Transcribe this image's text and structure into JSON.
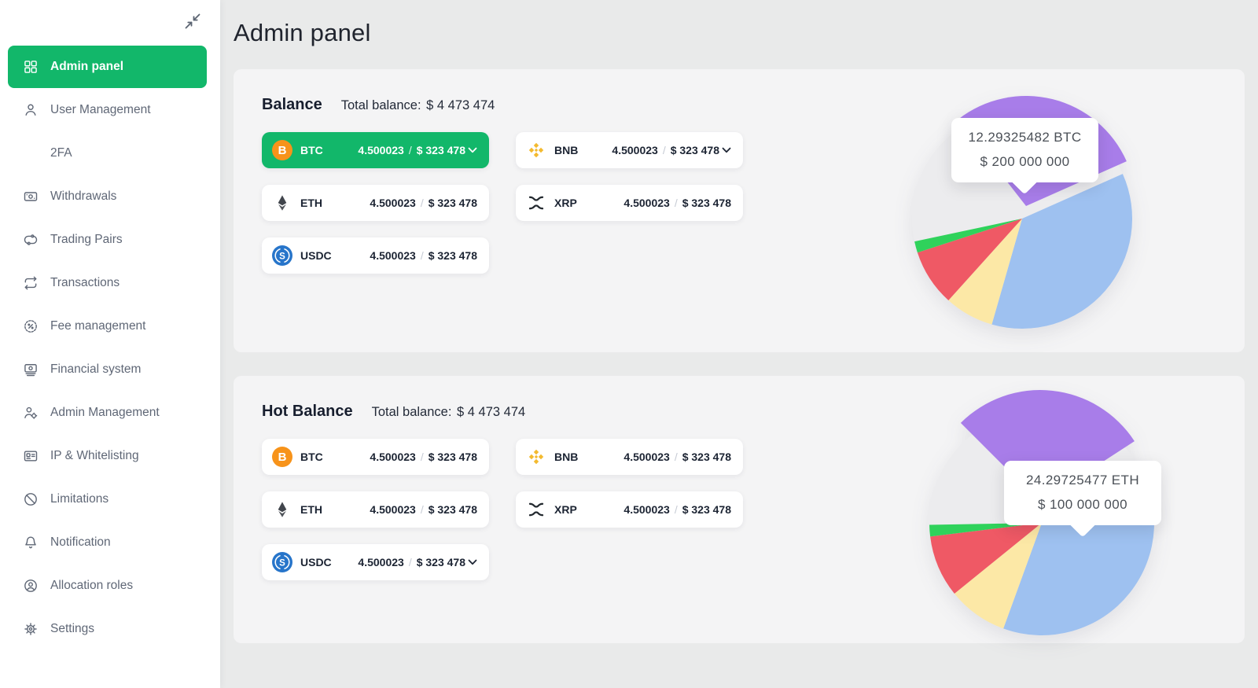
{
  "header": {
    "title": "Admin panel"
  },
  "sidebar": {
    "collapse_icon": "collapse-arrows-icon",
    "items": [
      {
        "label": "Admin panel",
        "icon": "grid-icon",
        "active": true
      },
      {
        "label": "User Management",
        "icon": "user-icon",
        "active": false
      },
      {
        "label": "2FA",
        "icon": null,
        "active": false
      },
      {
        "label": "Withdrawals",
        "icon": "banknote-icon",
        "active": false
      },
      {
        "label": "Trading Pairs",
        "icon": "swap-icon",
        "active": false
      },
      {
        "label": "Transactions",
        "icon": "repeat-icon",
        "active": false
      },
      {
        "label": "Fee management",
        "icon": "badge-percent-icon",
        "active": false
      },
      {
        "label": "Financial system",
        "icon": "cash-icon",
        "active": false
      },
      {
        "label": "Admin Management",
        "icon": "user-gear-icon",
        "active": false
      },
      {
        "label": "IP & Whitelisting",
        "icon": "id-card-icon",
        "active": false
      },
      {
        "label": "Limitations",
        "icon": "block-icon",
        "active": false
      },
      {
        "label": "Notification",
        "icon": "bell-icon",
        "active": false
      },
      {
        "label": "Allocation roles",
        "icon": "user-circle-icon",
        "active": false
      },
      {
        "label": "Settings",
        "icon": "gear-icon",
        "active": false
      }
    ]
  },
  "cards": [
    {
      "title": "Balance",
      "total_label": "Total balance:",
      "total_value": "$ 4 473 474",
      "chips": [
        {
          "symbol": "BTC",
          "icon": "btc-icon",
          "amount": "4.500023",
          "usd": "$ 323 478",
          "active": true,
          "chevron": true
        },
        {
          "symbol": "BNB",
          "icon": "bnb-icon",
          "amount": "4.500023",
          "usd": "$ 323 478",
          "active": false,
          "chevron": true
        },
        {
          "symbol": "ETH",
          "icon": "eth-icon",
          "amount": "4.500023",
          "usd": "$ 323 478",
          "active": false,
          "chevron": false
        },
        {
          "symbol": "XRP",
          "icon": "xrp-icon",
          "amount": "4.500023",
          "usd": "$ 323 478",
          "active": false,
          "chevron": false
        },
        {
          "symbol": "USDC",
          "icon": "usdc-icon",
          "amount": "4.500023",
          "usd": "$ 323 478",
          "active": false,
          "chevron": false
        }
      ]
    },
    {
      "title": "Hot Balance",
      "total_label": "Total balance:",
      "total_value": "$ 4 473 474",
      "chips": [
        {
          "symbol": "BTC",
          "icon": "btc-icon",
          "amount": "4.500023",
          "usd": "$ 323 478",
          "active": false,
          "chevron": false
        },
        {
          "symbol": "BNB",
          "icon": "bnb-icon",
          "amount": "4.500023",
          "usd": "$ 323 478",
          "active": false,
          "chevron": false
        },
        {
          "symbol": "ETH",
          "icon": "eth-icon",
          "amount": "4.500023",
          "usd": "$ 323 478",
          "active": false,
          "chevron": false
        },
        {
          "symbol": "XRP",
          "icon": "xrp-icon",
          "amount": "4.500023",
          "usd": "$ 323 478",
          "active": false,
          "chevron": false
        },
        {
          "symbol": "USDC",
          "icon": "usdc-icon",
          "amount": "4.500023",
          "usd": "$ 323 478",
          "active": false,
          "chevron": true
        }
      ]
    }
  ],
  "chart_data": [
    {
      "type": "pie",
      "title": "Balance allocation",
      "radius": 140,
      "base_color": "#ececee",
      "legend": "none",
      "tooltip": {
        "line1": "12.29325482 BTC",
        "line2": "$ 200 000 000"
      },
      "slices": [
        {
          "name": "purple",
          "color": "#a87de9",
          "pct": 29,
          "start": 322,
          "end": 426,
          "explode": [
            5,
            -16
          ]
        },
        {
          "name": "blue",
          "color": "#9ec1f0",
          "pct": 36,
          "start": 66,
          "end": 196
        },
        {
          "name": "yellow",
          "color": "#fce8a6",
          "pct": 7,
          "start": 196,
          "end": 222
        },
        {
          "name": "red",
          "color": "#ef5965",
          "pct": 8,
          "start": 222,
          "end": 252
        },
        {
          "name": "green",
          "color": "#2fd25b",
          "pct": 2,
          "start": 252,
          "end": 258
        }
      ]
    },
    {
      "type": "pie",
      "title": "Hot Balance allocation",
      "radius": 143,
      "base_color": "#ececee",
      "legend": "none",
      "tooltip": {
        "line1": "24.29725477 ETH",
        "line2": "$ 100 000 000"
      },
      "slices": [
        {
          "name": "purple",
          "color": "#a87de9",
          "pct": 28,
          "start": 315,
          "end": 417,
          "explode": [
            -2,
            -26
          ]
        },
        {
          "name": "blue",
          "color": "#9ec1f0",
          "pct": 40,
          "start": 57,
          "end": 200
        },
        {
          "name": "yellow",
          "color": "#fce8a6",
          "pct": 9,
          "start": 200,
          "end": 231
        },
        {
          "name": "red",
          "color": "#ef5965",
          "pct": 9,
          "start": 231,
          "end": 263
        },
        {
          "name": "green",
          "color": "#2fd25b",
          "pct": 2,
          "start": 263,
          "end": 269
        }
      ]
    }
  ],
  "colors": {
    "accent_green": "#12b76a",
    "sidebar_bg": "#ffffff",
    "main_bg": "#e9eaea",
    "card_bg": "#f4f4f5",
    "chip_bg": "#ffffff",
    "btc_orange": "#f7931a",
    "usdc_blue": "#2775ca",
    "bnb_gold": "#f3ba2f"
  }
}
